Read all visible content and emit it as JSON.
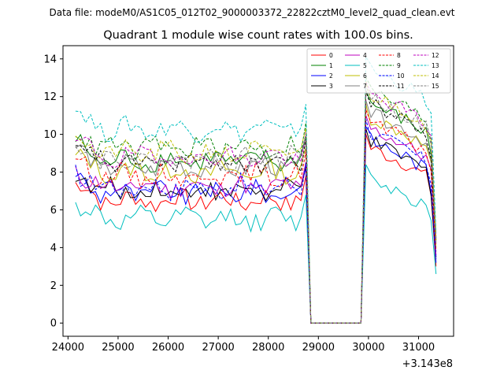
{
  "chart_data": {
    "type": "line",
    "suptitle": "Data file: modeM0/AS1C05_012T02_9000003372_22822cztM0_level2_quad_clean.evt",
    "title": "Quadrant 1 module wise count rates with 100.0s bins.",
    "xlabel": "",
    "ylabel": "",
    "x_offset_label": "+3.143e8",
    "xlim": [
      23900,
      31700
    ],
    "ylim": [
      -0.7,
      14.7
    ],
    "x_ticks": [
      24000,
      25000,
      26000,
      27000,
      28000,
      29000,
      30000,
      31000
    ],
    "x_tick_labels": [
      "24000",
      "25000",
      "26000",
      "27000",
      "28000",
      "29000",
      "30000",
      "31000"
    ],
    "y_ticks": [
      0,
      2,
      4,
      6,
      8,
      10,
      12,
      14
    ],
    "y_tick_labels": [
      "0",
      "2",
      "4",
      "6",
      "8",
      "10",
      "12",
      "14"
    ],
    "x_start": 24150,
    "x_step": 100,
    "gap_start_index": 47,
    "gap_end_index": 57,
    "legend_position": "top-right",
    "series": [
      {
        "name": "0",
        "color": "#ff0000",
        "dashed": false,
        "base": 6.5,
        "post": 8.2,
        "end": 3.0
      },
      {
        "name": "1",
        "color": "#008000",
        "dashed": false,
        "base": 8.6,
        "post": 10.5,
        "end": 4.5
      },
      {
        "name": "2",
        "color": "#0000ff",
        "dashed": false,
        "base": 6.9,
        "post": 8.6,
        "end": 3.2
      },
      {
        "name": "3",
        "color": "#000000",
        "dashed": false,
        "base": 7.0,
        "post": 8.5,
        "end": 3.5
      },
      {
        "name": "4",
        "color": "#bf00bf",
        "dashed": false,
        "base": 7.2,
        "post": 9.2,
        "end": 3.6
      },
      {
        "name": "5",
        "color": "#00bfbf",
        "dashed": false,
        "base": 5.5,
        "post": 6.6,
        "end": 2.6
      },
      {
        "name": "6",
        "color": "#bfbf00",
        "dashed": false,
        "base": 8.0,
        "post": 9.8,
        "end": 4.0
      },
      {
        "name": "7",
        "color": "#808080",
        "dashed": false,
        "base": 8.3,
        "post": 10.0,
        "end": 4.2
      },
      {
        "name": "8",
        "color": "#ff0000",
        "dashed": true,
        "base": 7.8,
        "post": 9.5,
        "end": 3.8
      },
      {
        "name": "9",
        "color": "#008000",
        "dashed": true,
        "base": 9.3,
        "post": 11.2,
        "end": 4.6
      },
      {
        "name": "10",
        "color": "#0000ff",
        "dashed": true,
        "base": 7.2,
        "post": 9.0,
        "end": 3.4
      },
      {
        "name": "11",
        "color": "#000000",
        "dashed": true,
        "base": 8.5,
        "post": 10.5,
        "end": 4.4
      },
      {
        "name": "12",
        "color": "#bf00bf",
        "dashed": true,
        "base": 8.8,
        "post": 11.0,
        "end": 4.5
      },
      {
        "name": "13",
        "color": "#00bfbf",
        "dashed": true,
        "base": 10.3,
        "post": 12.3,
        "end": 4.8
      },
      {
        "name": "14",
        "color": "#bfbf00",
        "dashed": true,
        "base": 9.0,
        "post": 11.0,
        "end": 4.4
      },
      {
        "name": "15",
        "color": "#808080",
        "dashed": true,
        "base": 8.7,
        "post": 10.8,
        "end": 4.3
      }
    ]
  }
}
